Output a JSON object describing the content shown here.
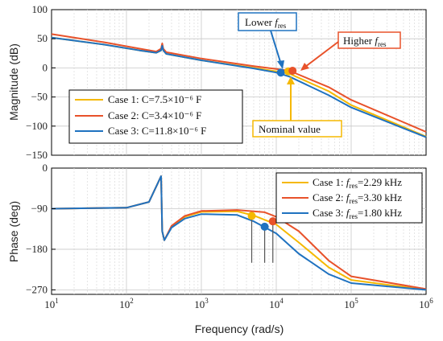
{
  "chart_data": [
    {
      "type": "line",
      "title": "",
      "xlabel": "",
      "ylabel": "Magnitude (dB)",
      "xscale": "log",
      "xlim": [
        10,
        1000000
      ],
      "ylim": [
        -150,
        100
      ],
      "yticks": [
        100,
        50,
        0,
        -50,
        -100,
        -150
      ],
      "yticklabels": [
        "100",
        "50",
        "0",
        "−50",
        "−100",
        "−150"
      ],
      "grid": true,
      "legend_position": "left",
      "series": [
        {
          "name": "Case 1: C=7.5×10⁻⁶ F",
          "color": "#f5b800",
          "points": [
            [
              10,
              52
            ],
            [
              50,
              40
            ],
            [
              150,
              30
            ],
            [
              250,
              26
            ],
            [
              290,
              30
            ],
            [
              300,
              38
            ],
            [
              310,
              30
            ],
            [
              340,
              24
            ],
            [
              1000,
              13
            ],
            [
              5000,
              0
            ],
            [
              10000,
              -6
            ],
            [
              15000,
              -10
            ],
            [
              50000,
              -40
            ],
            [
              100000,
              -64
            ],
            [
              1000000,
              -118
            ]
          ]
        },
        {
          "name": "Case 2: C=3.4×10⁻⁶ F",
          "color": "#e8522a",
          "points": [
            [
              10,
              58
            ],
            [
              50,
              44
            ],
            [
              150,
              33
            ],
            [
              250,
              28
            ],
            [
              290,
              33
            ],
            [
              300,
              42
            ],
            [
              310,
              33
            ],
            [
              340,
              27
            ],
            [
              1000,
              16
            ],
            [
              5000,
              3
            ],
            [
              10000,
              -2
            ],
            [
              15000,
              -5
            ],
            [
              50000,
              -33
            ],
            [
              100000,
              -55
            ],
            [
              1000000,
              -110
            ]
          ]
        },
        {
          "name": "Case 3: C=11.8×10⁻⁶ F",
          "color": "#1f72c0",
          "points": [
            [
              10,
              52
            ],
            [
              50,
              40
            ],
            [
              150,
              30
            ],
            [
              250,
              26
            ],
            [
              290,
              30
            ],
            [
              300,
              38
            ],
            [
              310,
              30
            ],
            [
              340,
              24
            ],
            [
              1000,
              13
            ],
            [
              5000,
              -1
            ],
            [
              10000,
              -8
            ],
            [
              15000,
              -15
            ],
            [
              50000,
              -47
            ],
            [
              100000,
              -68
            ],
            [
              1000000,
              -119
            ]
          ]
        }
      ],
      "markers": [
        {
          "x": 11500,
          "y": -8,
          "color": "#1f72c0"
        },
        {
          "x": 14500,
          "y": -6,
          "color": "#f5b800"
        },
        {
          "x": 16500,
          "y": -5,
          "color": "#e8522a"
        }
      ],
      "annotations": [
        {
          "text_main": "Lower ",
          "text_italic": "f",
          "text_sub": "res",
          "color": "#1f72c0"
        },
        {
          "text_main": "Higher ",
          "text_italic": "f",
          "text_sub": "res",
          "color": "#e8522a"
        },
        {
          "text_main": "Nominal value",
          "text_italic": "",
          "text_sub": "",
          "color": "#f5b800"
        }
      ]
    },
    {
      "type": "line",
      "title": "",
      "xlabel": "Frequency  (rad/s)",
      "ylabel": "Phase (deg)",
      "xscale": "log",
      "xlim": [
        10,
        1000000
      ],
      "ylim": [
        -280,
        0
      ],
      "xticks": [
        10,
        100,
        1000,
        10000,
        100000,
        1000000
      ],
      "xticklabels": [
        {
          "base": "10",
          "exp": "1"
        },
        {
          "base": "10",
          "exp": "2"
        },
        {
          "base": "10",
          "exp": "3"
        },
        {
          "base": "10",
          "exp": "4"
        },
        {
          "base": "10",
          "exp": "5"
        },
        {
          "base": "10",
          "exp": "6"
        }
      ],
      "yticks": [
        0,
        -90,
        -180,
        -270
      ],
      "yticklabels": [
        "0",
        "−90",
        "−180",
        "−270"
      ],
      "grid": true,
      "legend_position": "top-right",
      "series": [
        {
          "name": "Case 1: fres=2.29 kHz",
          "legend_prefix": "Case 1: ",
          "legend_value": "=2.29 kHz",
          "color": "#f5b800",
          "points": [
            [
              10,
              -90
            ],
            [
              100,
              -88
            ],
            [
              200,
              -75
            ],
            [
              290,
              -18
            ],
            [
              300,
              -140
            ],
            [
              320,
              -160
            ],
            [
              400,
              -130
            ],
            [
              600,
              -108
            ],
            [
              1000,
              -97
            ],
            [
              3000,
              -96
            ],
            [
              5000,
              -105
            ],
            [
              10000,
              -125
            ],
            [
              20000,
              -165
            ],
            [
              50000,
              -220
            ],
            [
              100000,
              -248
            ],
            [
              1000000,
              -270
            ]
          ]
        },
        {
          "name": "Case 2: fres=3.30 kHz",
          "legend_prefix": "Case 2: ",
          "legend_value": "=3.30 kHz",
          "color": "#e8522a",
          "points": [
            [
              10,
              -90
            ],
            [
              100,
              -88
            ],
            [
              200,
              -75
            ],
            [
              290,
              -18
            ],
            [
              300,
              -140
            ],
            [
              320,
              -160
            ],
            [
              400,
              -128
            ],
            [
              600,
              -106
            ],
            [
              1000,
              -95
            ],
            [
              3000,
              -93
            ],
            [
              7000,
              -98
            ],
            [
              10000,
              -108
            ],
            [
              20000,
              -140
            ],
            [
              50000,
              -205
            ],
            [
              100000,
              -240
            ],
            [
              1000000,
              -268
            ]
          ]
        },
        {
          "name": "Case 3: fres=1.80 kHz",
          "legend_prefix": "Case 3: ",
          "legend_value": "=1.80 kHz",
          "color": "#1f72c0",
          "points": [
            [
              10,
              -90
            ],
            [
              100,
              -88
            ],
            [
              200,
              -75
            ],
            [
              290,
              -18
            ],
            [
              300,
              -140
            ],
            [
              320,
              -160
            ],
            [
              400,
              -132
            ],
            [
              600,
              -112
            ],
            [
              1000,
              -102
            ],
            [
              3000,
              -104
            ],
            [
              5000,
              -118
            ],
            [
              10000,
              -145
            ],
            [
              20000,
              -190
            ],
            [
              50000,
              -235
            ],
            [
              100000,
              -255
            ],
            [
              1000000,
              -270
            ]
          ]
        }
      ],
      "markers": [
        {
          "x": 4700,
          "y": -106,
          "color": "#f5b800"
        },
        {
          "x": 7000,
          "y": -130,
          "color": "#1f72c0"
        },
        {
          "x": 9000,
          "y": -118,
          "color": "#e8522a"
        }
      ],
      "droplines": [
        {
          "x": 4700,
          "from": -106,
          "to": -210
        },
        {
          "x": 7000,
          "from": -130,
          "to": -210
        },
        {
          "x": 9000,
          "from": -118,
          "to": -210
        }
      ]
    }
  ]
}
